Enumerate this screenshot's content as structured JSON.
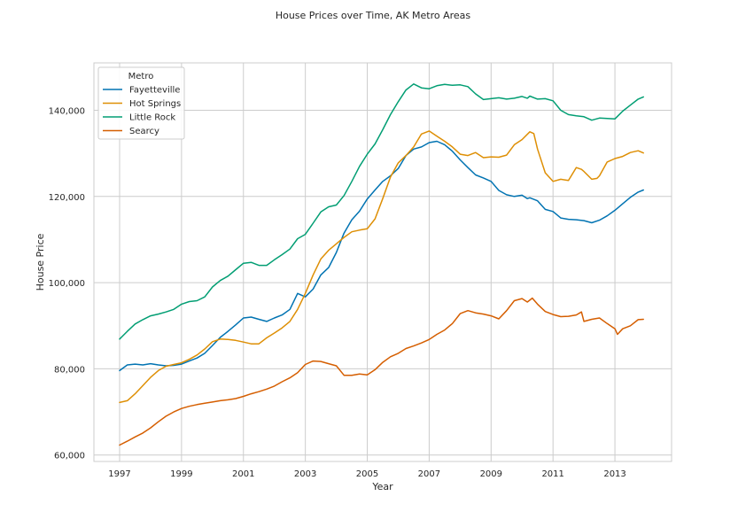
{
  "chart_data": {
    "type": "line",
    "title": "House Prices over Time, AK Metro Areas",
    "xlabel": "Year",
    "ylabel": "House Price",
    "xlim": [
      1996.17,
      2014.83
    ],
    "ylim": [
      58500,
      151000
    ],
    "xticks": [
      1997,
      1999,
      2001,
      2003,
      2005,
      2007,
      2009,
      2011,
      2013
    ],
    "xtick_labels": [
      "1997",
      "1999",
      "2001",
      "2003",
      "2005",
      "2007",
      "2009",
      "2011",
      "2013"
    ],
    "yticks": [
      60000,
      80000,
      100000,
      120000,
      140000
    ],
    "ytick_labels": [
      "60,000",
      "80,000",
      "100,000",
      "120,000",
      "140,000"
    ],
    "grid": true,
    "legend": {
      "title": "Metro",
      "placement": "top-left"
    },
    "series": [
      {
        "name": "Fayetteville",
        "color": "#0173b2",
        "x": [
          1997.0,
          1997.25,
          1997.5,
          1997.75,
          1998.0,
          1998.25,
          1998.5,
          1998.75,
          1999.0,
          1999.25,
          1999.5,
          1999.75,
          2000.0,
          2000.25,
          2000.5,
          2000.75,
          2001.0,
          2001.25,
          2001.5,
          2001.75,
          2002.0,
          2002.25,
          2002.5,
          2002.75,
          2003.0,
          2003.25,
          2003.5,
          2003.75,
          2004.0,
          2004.25,
          2004.5,
          2004.75,
          2005.0,
          2005.25,
          2005.5,
          2005.75,
          2006.0,
          2006.25,
          2006.5,
          2006.75,
          2007.0,
          2007.25,
          2007.5,
          2007.75,
          2008.0,
          2008.25,
          2008.5,
          2008.75,
          2009.0,
          2009.25,
          2009.5,
          2009.75,
          2010.0,
          2010.17,
          2010.25,
          2010.5,
          2010.75,
          2011.0,
          2011.25,
          2011.5,
          2011.75,
          2012.0,
          2012.25,
          2012.5,
          2012.75,
          2013.0,
          2013.25,
          2013.5,
          2013.75,
          2013.92
        ],
        "y": [
          79600,
          80900,
          81100,
          80900,
          81200,
          80900,
          80700,
          80800,
          81100,
          81800,
          82500,
          83600,
          85400,
          87300,
          88700,
          90200,
          91800,
          92000,
          91500,
          91000,
          91800,
          92500,
          93800,
          97500,
          96700,
          98500,
          101800,
          103500,
          107000,
          111500,
          114600,
          116600,
          119400,
          121500,
          123500,
          124800,
          126500,
          129500,
          131000,
          131500,
          132500,
          132800,
          132000,
          130500,
          128500,
          126700,
          125000,
          124300,
          123500,
          121400,
          120400,
          120000,
          120300,
          119500,
          119700,
          119000,
          117000,
          116500,
          115000,
          114700,
          114600,
          114400,
          113900,
          114500,
          115500,
          116800,
          118300,
          119800,
          121000,
          121500
        ]
      },
      {
        "name": "Hot Springs",
        "color": "#de8f05",
        "x": [
          1997.0,
          1997.25,
          1997.5,
          1997.75,
          1998.0,
          1998.25,
          1998.5,
          1998.75,
          1999.0,
          1999.25,
          1999.5,
          1999.75,
          2000.0,
          2000.25,
          2000.5,
          2000.75,
          2001.0,
          2001.25,
          2001.5,
          2001.75,
          2002.0,
          2002.25,
          2002.5,
          2002.75,
          2003.0,
          2003.25,
          2003.5,
          2003.75,
          2004.0,
          2004.25,
          2004.5,
          2004.75,
          2005.0,
          2005.25,
          2005.5,
          2005.75,
          2006.0,
          2006.25,
          2006.5,
          2006.75,
          2007.0,
          2007.25,
          2007.5,
          2007.75,
          2008.0,
          2008.25,
          2008.5,
          2008.75,
          2009.0,
          2009.25,
          2009.5,
          2009.75,
          2010.0,
          2010.25,
          2010.38,
          2010.5,
          2010.75,
          2011.0,
          2011.25,
          2011.5,
          2011.75,
          2011.92,
          2012.0,
          2012.25,
          2012.42,
          2012.5,
          2012.75,
          2013.0,
          2013.25,
          2013.5,
          2013.75,
          2013.92
        ],
        "y": [
          72200,
          72600,
          74200,
          76100,
          78000,
          79600,
          80600,
          81000,
          81400,
          82200,
          83200,
          84600,
          86300,
          86900,
          86800,
          86600,
          86200,
          85800,
          85800,
          87200,
          88300,
          89500,
          91000,
          93800,
          97500,
          101800,
          105500,
          107500,
          109000,
          110500,
          111800,
          112200,
          112500,
          114800,
          119500,
          124500,
          127800,
          129500,
          131500,
          134500,
          135200,
          134000,
          132800,
          131500,
          129800,
          129500,
          130200,
          129000,
          129200,
          129100,
          129600,
          132000,
          133200,
          135000,
          134600,
          131000,
          125500,
          123500,
          124000,
          123700,
          126700,
          126300,
          125800,
          124000,
          124200,
          124800,
          128000,
          128800,
          129300,
          130200,
          130600,
          130100
        ]
      },
      {
        "name": "Little Rock",
        "color": "#029e73",
        "x": [
          1997.0,
          1997.25,
          1997.5,
          1997.75,
          1998.0,
          1998.25,
          1998.5,
          1998.75,
          1999.0,
          1999.25,
          1999.5,
          1999.75,
          2000.0,
          2000.25,
          2000.5,
          2000.75,
          2001.0,
          2001.25,
          2001.5,
          2001.75,
          2002.0,
          2002.25,
          2002.5,
          2002.75,
          2003.0,
          2003.25,
          2003.5,
          2003.75,
          2004.0,
          2004.25,
          2004.5,
          2004.75,
          2005.0,
          2005.25,
          2005.5,
          2005.75,
          2006.0,
          2006.25,
          2006.5,
          2006.75,
          2007.0,
          2007.25,
          2007.5,
          2007.75,
          2008.0,
          2008.25,
          2008.5,
          2008.75,
          2009.0,
          2009.25,
          2009.5,
          2009.75,
          2010.0,
          2010.17,
          2010.25,
          2010.5,
          2010.75,
          2011.0,
          2011.25,
          2011.5,
          2011.75,
          2012.0,
          2012.25,
          2012.5,
          2012.75,
          2013.0,
          2013.25,
          2013.5,
          2013.75,
          2013.92
        ],
        "y": [
          86900,
          88700,
          90400,
          91400,
          92300,
          92700,
          93200,
          93800,
          95000,
          95600,
          95800,
          96700,
          99000,
          100500,
          101500,
          103000,
          104500,
          104700,
          104000,
          104000,
          105300,
          106500,
          107800,
          110200,
          111200,
          113800,
          116400,
          117600,
          118000,
          120200,
          123500,
          127000,
          129800,
          132200,
          135500,
          139000,
          142000,
          144700,
          146100,
          145200,
          145000,
          145700,
          146000,
          145800,
          145900,
          145500,
          143800,
          142500,
          142700,
          142900,
          142600,
          142800,
          143200,
          142800,
          143300,
          142600,
          142700,
          142200,
          140000,
          139000,
          138700,
          138500,
          137700,
          138200,
          138100,
          138000,
          139800,
          141200,
          142600,
          143100
        ]
      },
      {
        "name": "Searcy",
        "color": "#d55e00",
        "x": [
          1997.0,
          1997.25,
          1997.5,
          1997.75,
          1998.0,
          1998.25,
          1998.5,
          1998.75,
          1999.0,
          1999.25,
          1999.5,
          1999.75,
          2000.0,
          2000.25,
          2000.5,
          2000.75,
          2001.0,
          2001.25,
          2001.5,
          2001.75,
          2002.0,
          2002.25,
          2002.5,
          2002.75,
          2003.0,
          2003.25,
          2003.5,
          2003.75,
          2004.0,
          2004.25,
          2004.5,
          2004.75,
          2005.0,
          2005.25,
          2005.5,
          2005.75,
          2006.0,
          2006.25,
          2006.5,
          2006.75,
          2007.0,
          2007.25,
          2007.5,
          2007.75,
          2008.0,
          2008.25,
          2008.5,
          2008.75,
          2009.0,
          2009.25,
          2009.5,
          2009.75,
          2010.0,
          2010.17,
          2010.33,
          2010.5,
          2010.75,
          2011.0,
          2011.25,
          2011.5,
          2011.75,
          2011.92,
          2012.0,
          2012.25,
          2012.5,
          2012.75,
          2013.0,
          2013.08,
          2013.25,
          2013.5,
          2013.75,
          2013.92
        ],
        "y": [
          62300,
          63200,
          64200,
          65100,
          66300,
          67700,
          69000,
          70000,
          70800,
          71300,
          71700,
          72000,
          72300,
          72600,
          72800,
          73100,
          73600,
          74200,
          74700,
          75300,
          76000,
          77000,
          77900,
          79100,
          81000,
          81800,
          81700,
          81200,
          80700,
          78500,
          78500,
          78800,
          78600,
          79800,
          81500,
          82800,
          83600,
          84700,
          85300,
          86000,
          86800,
          88000,
          89000,
          90500,
          92800,
          93500,
          93000,
          92700,
          92300,
          91600,
          93500,
          95800,
          96300,
          95500,
          96400,
          95000,
          93300,
          92600,
          92100,
          92200,
          92500,
          93200,
          91000,
          91500,
          91800,
          90500,
          89300,
          88000,
          89300,
          90000,
          91400,
          91500
        ]
      }
    ]
  }
}
